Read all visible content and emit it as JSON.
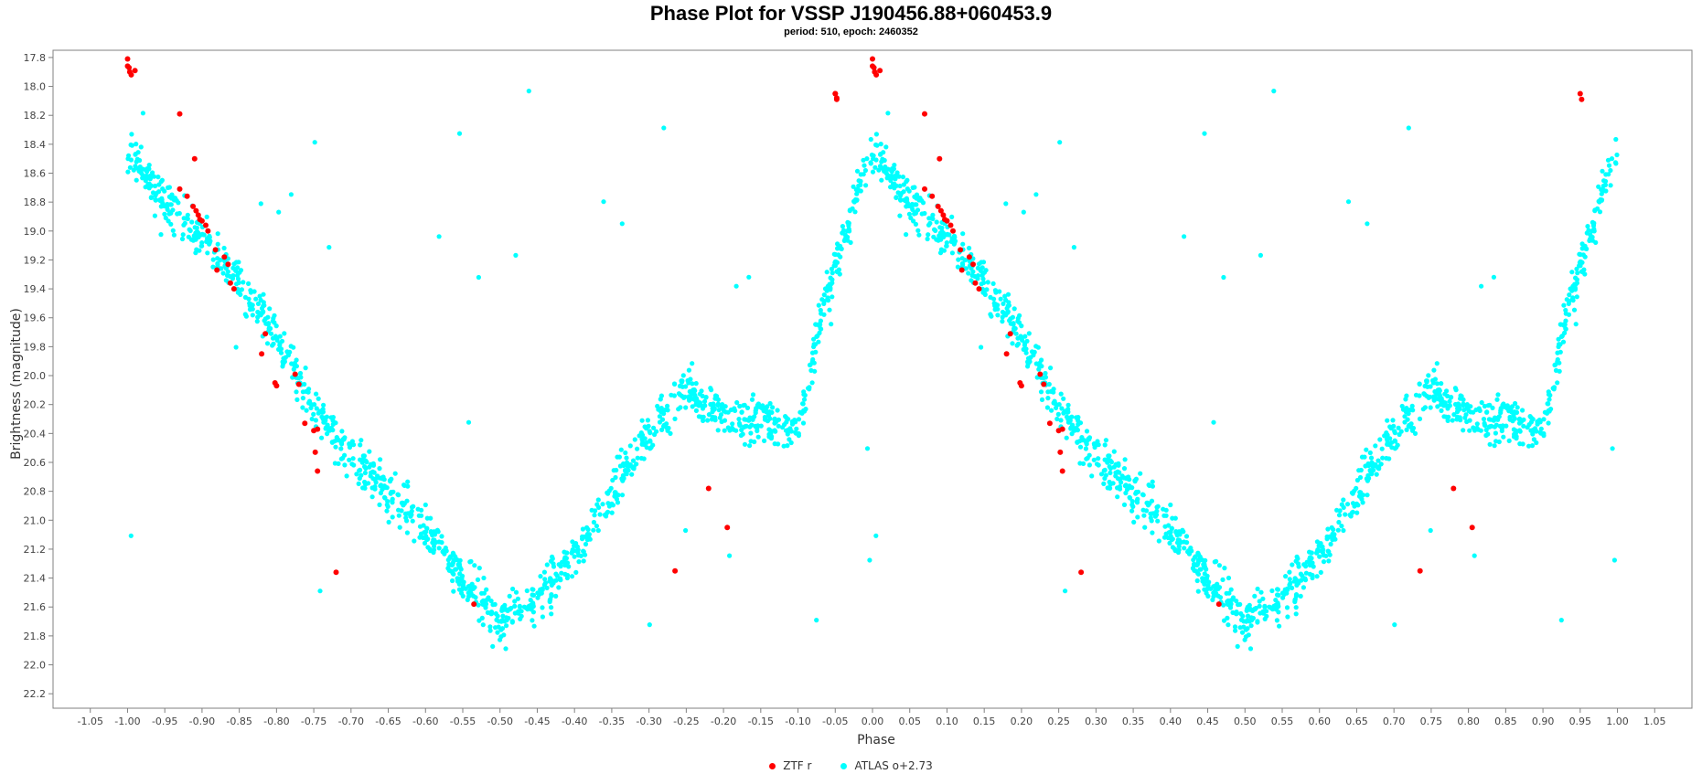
{
  "chart_data": {
    "type": "scatter",
    "title": "Phase Plot for VSSP J190456.88+060453.9",
    "subtitle": "period: 510, epoch: 2460352",
    "xlabel": "Phase",
    "ylabel": "Brightness (magnitude)",
    "xlim": [
      -1.1,
      1.1
    ],
    "ylim": [
      22.3,
      17.75
    ],
    "y_inverted": true,
    "x_ticks": [
      "-1.05",
      "-1.00",
      "-0.95",
      "-0.90",
      "-0.85",
      "-0.80",
      "-0.75",
      "-0.70",
      "-0.65",
      "-0.60",
      "-0.55",
      "-0.50",
      "-0.45",
      "-0.40",
      "-0.35",
      "-0.30",
      "-0.25",
      "-0.20",
      "-0.15",
      "-0.10",
      "-0.05",
      "0.00",
      "0.05",
      "0.10",
      "0.15",
      "0.20",
      "0.25",
      "0.30",
      "0.35",
      "0.40",
      "0.45",
      "0.50",
      "0.55",
      "0.60",
      "0.65",
      "0.70",
      "0.75",
      "0.80",
      "0.85",
      "0.90",
      "0.95",
      "1.00",
      "1.05"
    ],
    "y_ticks": [
      "17.8",
      "18.0",
      "18.2",
      "18.4",
      "18.6",
      "18.8",
      "19.0",
      "19.2",
      "19.4",
      "19.6",
      "19.8",
      "20.0",
      "20.2",
      "20.4",
      "20.6",
      "20.8",
      "21.0",
      "21.2",
      "21.4",
      "21.6",
      "21.8",
      "22.0",
      "22.2"
    ],
    "grid": false,
    "legend_position": "bottom-center",
    "series": [
      {
        "name": "ZTF r",
        "color": "#ff0000",
        "points": [
          [
            0.0,
            17.81
          ],
          [
            0.0,
            17.86
          ],
          [
            0.002,
            17.87
          ],
          [
            0.003,
            17.9
          ],
          [
            0.005,
            17.92
          ],
          [
            0.01,
            17.89
          ],
          [
            -0.05,
            18.05
          ],
          [
            -0.048,
            18.08
          ],
          [
            0.07,
            18.19
          ],
          [
            0.09,
            18.5
          ],
          [
            0.07,
            18.71
          ],
          [
            0.08,
            18.76
          ],
          [
            0.088,
            18.83
          ],
          [
            0.092,
            18.86
          ],
          [
            0.095,
            18.89
          ],
          [
            0.097,
            18.92
          ],
          [
            0.1,
            18.93
          ],
          [
            0.105,
            18.96
          ],
          [
            0.108,
            19.0
          ],
          [
            0.118,
            19.13
          ],
          [
            0.13,
            19.18
          ],
          [
            0.135,
            19.23
          ],
          [
            0.12,
            19.27
          ],
          [
            0.138,
            19.36
          ],
          [
            0.143,
            19.4
          ],
          [
            0.185,
            19.71
          ],
          [
            0.18,
            19.85
          ],
          [
            0.198,
            20.05
          ],
          [
            0.2,
            20.07
          ],
          [
            0.225,
            19.99
          ],
          [
            0.23,
            20.06
          ],
          [
            0.238,
            20.33
          ],
          [
            0.255,
            20.37
          ],
          [
            0.25,
            20.38
          ],
          [
            0.252,
            20.53
          ],
          [
            0.255,
            20.66
          ],
          [
            0.28,
            21.36
          ],
          [
            0.465,
            21.58
          ],
          [
            0.735,
            21.35
          ],
          [
            0.78,
            20.78
          ],
          [
            0.805,
            21.05
          ],
          [
            0.95,
            18.05
          ],
          [
            0.952,
            18.09
          ]
        ]
      },
      {
        "name": "ATLAS o+2.73",
        "color": "#00ffff",
        "points": "generated-by-script"
      }
    ]
  },
  "legend": {
    "items": [
      {
        "label": "ZTF r",
        "color": "#ff0000"
      },
      {
        "label": "ATLAS o+2.73",
        "color": "#00ffff"
      }
    ]
  }
}
